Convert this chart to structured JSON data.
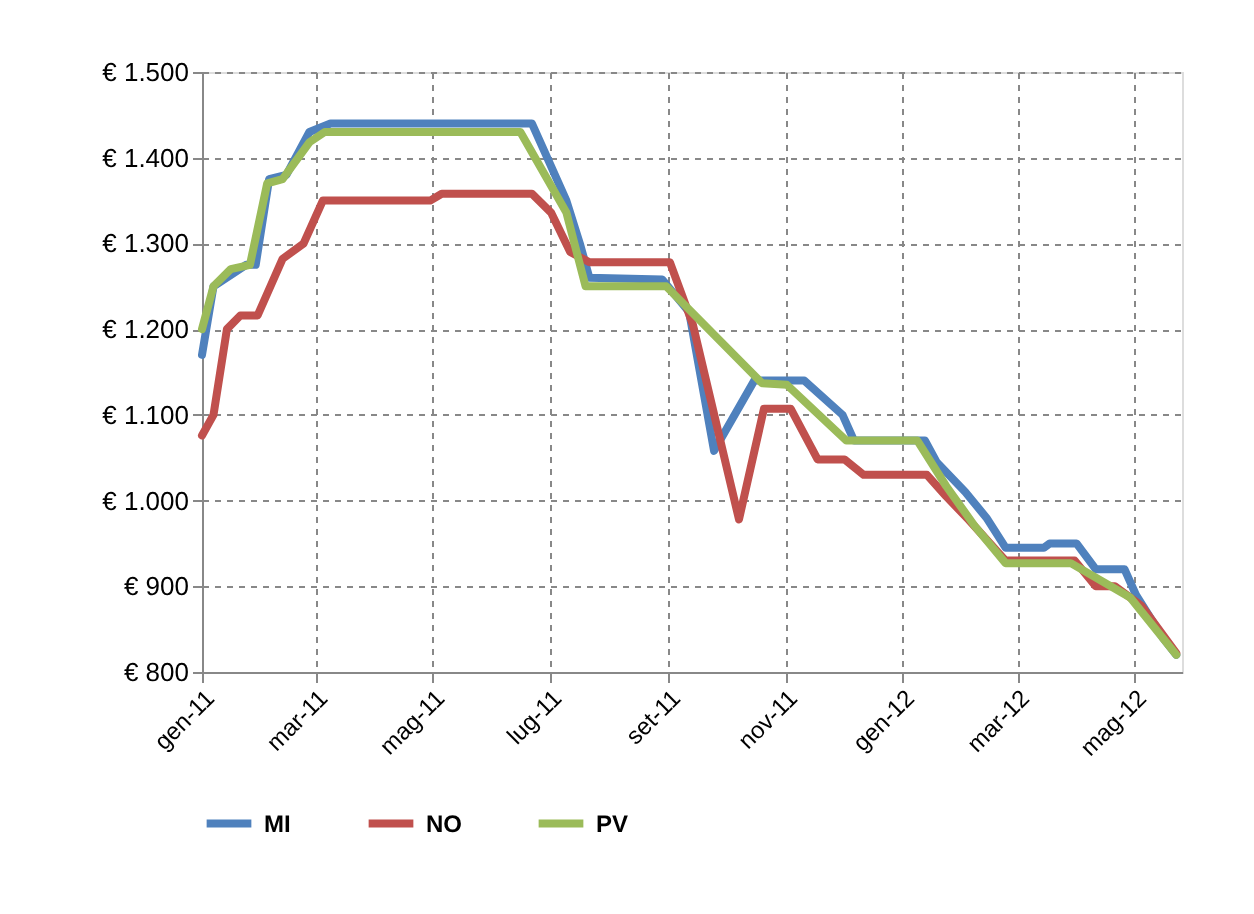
{
  "chart_data": {
    "type": "line",
    "legend": "bottom",
    "grid": true,
    "marker": "none",
    "line_style": "solid",
    "xlim": [
      "2011-01-01",
      "2012-05-26"
    ],
    "xticks": [
      {
        "value": "2011-01-01",
        "label": "gen-11"
      },
      {
        "value": "2011-03-01",
        "label": "mar-11"
      },
      {
        "value": "2011-05-01",
        "label": "mag-11"
      },
      {
        "value": "2011-07-01",
        "label": "lug-11"
      },
      {
        "value": "2011-09-01",
        "label": "set-11"
      },
      {
        "value": "2011-11-01",
        "label": "nov-11"
      },
      {
        "value": "2012-01-01",
        "label": "gen-12"
      },
      {
        "value": "2012-03-01",
        "label": "mar-12"
      },
      {
        "value": "2012-05-01",
        "label": "mag-12"
      }
    ],
    "ylim": [
      800,
      1500
    ],
    "yticks": [
      {
        "value": 800,
        "label": "€ 800"
      },
      {
        "value": 900,
        "label": "€ 900"
      },
      {
        "value": 1000,
        "label": "€ 1.000"
      },
      {
        "value": 1100,
        "label": "€ 1.100"
      },
      {
        "value": 1200,
        "label": "€ 1.200"
      },
      {
        "value": 1300,
        "label": "€ 1.300"
      },
      {
        "value": 1400,
        "label": "€ 1.400"
      },
      {
        "value": 1500,
        "label": "€ 1.500"
      }
    ],
    "series": [
      {
        "name": "MI",
        "color": "#4f81bd",
        "x": [
          "2011-01-01",
          "2011-01-07",
          "2011-01-24",
          "2011-01-29",
          "2011-02-05",
          "2011-02-14",
          "2011-02-26",
          "2011-03-09",
          "2011-06-22",
          "2011-06-30",
          "2011-07-10",
          "2011-07-17",
          "2011-07-22",
          "2011-08-29",
          "2011-09-12",
          "2011-09-25",
          "2011-10-16",
          "2011-11-11",
          "2011-12-01",
          "2011-12-07",
          "2012-01-13",
          "2012-01-19",
          "2012-02-03",
          "2012-02-14",
          "2012-02-24",
          "2012-03-15",
          "2012-03-18",
          "2012-04-01",
          "2012-04-11",
          "2012-04-26",
          "2012-05-02",
          "2012-05-16",
          "2012-05-23"
        ],
        "values": [
          1170,
          1250,
          1275,
          1275,
          1375,
          1380,
          1430,
          1440,
          1440,
          1400,
          1350,
          1300,
          1260,
          1258,
          1220,
          1058,
          1140,
          1140,
          1100,
          1070,
          1070,
          1045,
          1010,
          980,
          945,
          945,
          950,
          950,
          920,
          920,
          890,
          840,
          820
        ]
      },
      {
        "name": "NO",
        "color": "#c0504d",
        "x": [
          "2011-01-01",
          "2011-01-07",
          "2011-01-14",
          "2011-01-21",
          "2011-01-30",
          "2011-02-12",
          "2011-02-23",
          "2011-03-05",
          "2011-04-30",
          "2011-05-06",
          "2011-06-22",
          "2011-07-02",
          "2011-07-12",
          "2011-07-22",
          "2011-09-02",
          "2011-09-14",
          "2011-10-08",
          "2011-10-21",
          "2011-11-04",
          "2011-11-18",
          "2011-12-02",
          "2011-12-12",
          "2012-01-14",
          "2012-01-24",
          "2012-02-05",
          "2012-02-24",
          "2012-03-31",
          "2012-04-11",
          "2012-04-21",
          "2012-05-05",
          "2012-05-23"
        ],
        "values": [
          1076,
          1100,
          1200,
          1216,
          1216,
          1282,
          1300,
          1350,
          1350,
          1358,
          1358,
          1336,
          1290,
          1278,
          1278,
          1205,
          978,
          1107,
          1107,
          1048,
          1048,
          1030,
          1030,
          1005,
          977,
          930,
          930,
          900,
          900,
          877,
          822
        ]
      },
      {
        "name": "PV",
        "color": "#9bbb59",
        "x": [
          "2011-01-01",
          "2011-01-07",
          "2011-01-16",
          "2011-01-26",
          "2011-02-04",
          "2011-02-12",
          "2011-02-26",
          "2011-03-06",
          "2011-06-16",
          "2011-07-10",
          "2011-07-20",
          "2011-08-31",
          "2011-10-20",
          "2011-11-02",
          "2011-12-03",
          "2012-01-09",
          "2012-01-24",
          "2012-02-08",
          "2012-02-24",
          "2012-03-29",
          "2012-04-29",
          "2012-05-23"
        ],
        "values": [
          1200,
          1250,
          1270,
          1275,
          1370,
          1375,
          1418,
          1430,
          1430,
          1336,
          1250,
          1250,
          1137,
          1135,
          1070,
          1070,
          1017,
          970,
          927,
          927,
          887,
          820
        ]
      }
    ]
  }
}
